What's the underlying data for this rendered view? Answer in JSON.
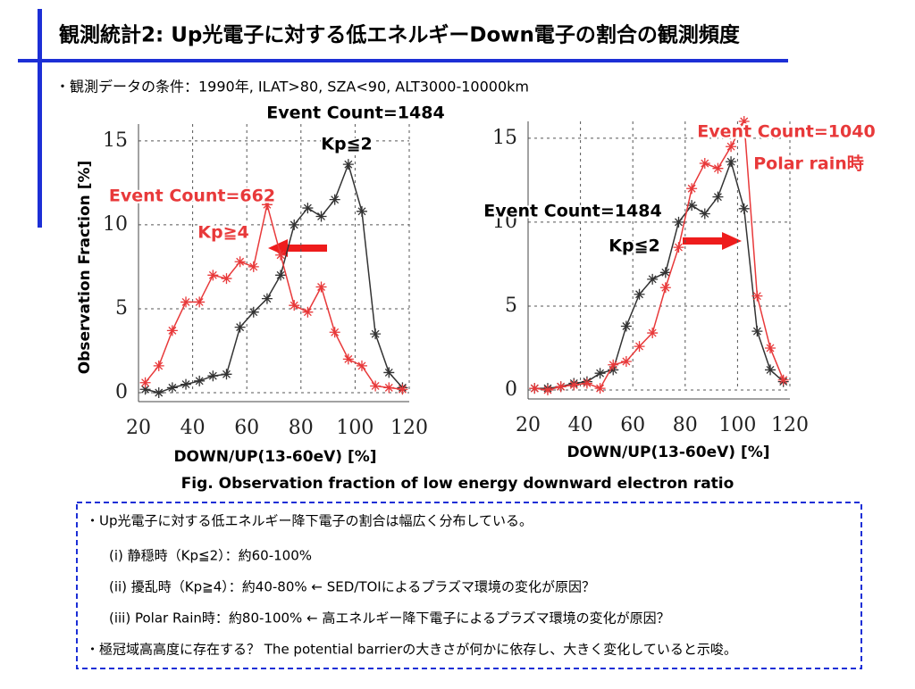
{
  "title": "観測統計2: Up光電子に対する低エネルギーDown電子の割合の観測頻度",
  "condition": "・観測データの条件：1990年, ILAT>80, SZA<90, ALT3000-10000km",
  "caption": "Fig. Observation fraction of low energy downward electron ratio",
  "notes": [
    "・Up光電子に対する低エネルギー降下電子の割合は幅広く分布している。",
    "(i) 静穏時（Kp≦2）：約60-100%",
    "(ii) 擾乱時（Kp≧4）：約40-80%  ←  SED/TOIによるプラズマ環境の変化が原因？",
    "(iii) Polar Rain時：約80-100%  ←  高エネルギー降下電子によるプラズマ環境の変化が原因？",
    "・極冠域高高度に存在する？ The potential barrierの大きさが何かに依存し、大きく変化していると示唆。"
  ],
  "chart_data": [
    {
      "type": "line",
      "xlabel": "DOWN/UP(13-60eV) [%]",
      "ylabel": "Observation Fraction [%]",
      "x": [
        22.5,
        27.5,
        32.5,
        37.5,
        42.5,
        47.5,
        52.5,
        57.5,
        62.5,
        67.5,
        72.5,
        77.5,
        82.5,
        87.5,
        92.5,
        97.5,
        102.5,
        107.5,
        112.5,
        117.5
      ],
      "series": [
        {
          "name": "Kp≦2",
          "color": "#333333",
          "values": [
            0.2,
            0,
            0.3,
            0.5,
            0.7,
            1,
            1.1,
            3.9,
            4.8,
            5.6,
            7,
            10,
            11,
            10.5,
            11.5,
            13.6,
            10.8,
            3.5,
            1.2,
            0.3
          ]
        },
        {
          "name": "Kp≧4",
          "color": "#e8393a",
          "values": [
            0.6,
            1.6,
            3.7,
            5.4,
            5.4,
            7,
            6.8,
            7.8,
            7.5,
            11.2,
            8.2,
            5.2,
            4.8,
            6.3,
            3.6,
            2,
            1.6,
            0.4,
            0.3,
            0.2
          ]
        }
      ],
      "xlim": [
        20,
        120
      ],
      "xticks": [
        20,
        40,
        60,
        80,
        100,
        120
      ],
      "ylim": [
        0,
        16
      ],
      "yticks": [
        0,
        5,
        10,
        15
      ],
      "grid": true,
      "annotations": [
        {
          "text": "Event Count=1484",
          "color": "#000000"
        },
        {
          "text": "Kp≦2",
          "color": "#000000"
        },
        {
          "text": "Event Count=662",
          "color": "#e8393a"
        },
        {
          "text": "Kp≧4",
          "color": "#e8393a"
        }
      ]
    },
    {
      "type": "line",
      "xlabel": "DOWN/UP(13-60eV) [%]",
      "x": [
        22.5,
        27.5,
        32.5,
        37.5,
        42.5,
        47.5,
        52.5,
        57.5,
        62.5,
        67.5,
        72.5,
        77.5,
        82.5,
        87.5,
        92.5,
        97.5,
        102.5,
        107.5,
        112.5,
        117.5
      ],
      "series": [
        {
          "name": "Kp≦2",
          "color": "#333333",
          "values": [
            0.1,
            0.1,
            0.2,
            0.4,
            0.5,
            1,
            1.2,
            3.8,
            5.7,
            6.6,
            7,
            10,
            11,
            10.5,
            11.5,
            13.6,
            10.8,
            3.5,
            1.2,
            0.5
          ]
        },
        {
          "name": "Polar rain",
          "color": "#e8393a",
          "values": [
            0.1,
            0,
            0.2,
            0.3,
            0.4,
            0.1,
            1.5,
            1.7,
            2.6,
            3.4,
            6.1,
            8.5,
            12,
            13.5,
            13.2,
            14.5,
            16,
            5.6,
            2.5,
            0.6
          ]
        }
      ],
      "xlim": [
        20,
        120
      ],
      "xticks": [
        20,
        40,
        60,
        80,
        100,
        120
      ],
      "ylim": [
        0,
        16
      ],
      "yticks": [
        0,
        5,
        10,
        15
      ],
      "grid": true,
      "annotations": [
        {
          "text": "Event Count=1040",
          "color": "#e8393a"
        },
        {
          "text": "Polar rain時",
          "color": "#e8393a"
        },
        {
          "text": "Event Count=1484",
          "color": "#000000"
        },
        {
          "text": "Kp≦2",
          "color": "#000000"
        }
      ]
    }
  ]
}
